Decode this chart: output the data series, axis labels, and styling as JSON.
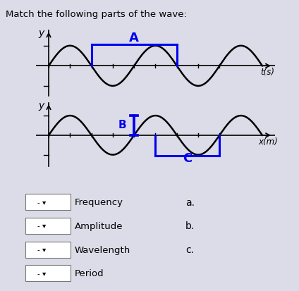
{
  "title": "Match the following parts of the wave:",
  "bg_color": "#dcdce8",
  "panel_bg": "#ffffff",
  "wave_color": "#000000",
  "blue_color": "#0000ee",
  "top_xlabel": "t(s)",
  "bottom_xlabel": "x(m)",
  "ylabel": "y",
  "label_A": "A",
  "label_B": "B",
  "label_C": "C",
  "items": [
    "Frequency",
    "Amplitude",
    "Wavelength",
    "Period"
  ],
  "letters": [
    "a.",
    "b.",
    "c."
  ],
  "title_fontsize": 9.5,
  "wave_lw": 1.8,
  "blue_lw": 2.2,
  "item_fontsize": 9.5,
  "letter_fontsize": 10
}
